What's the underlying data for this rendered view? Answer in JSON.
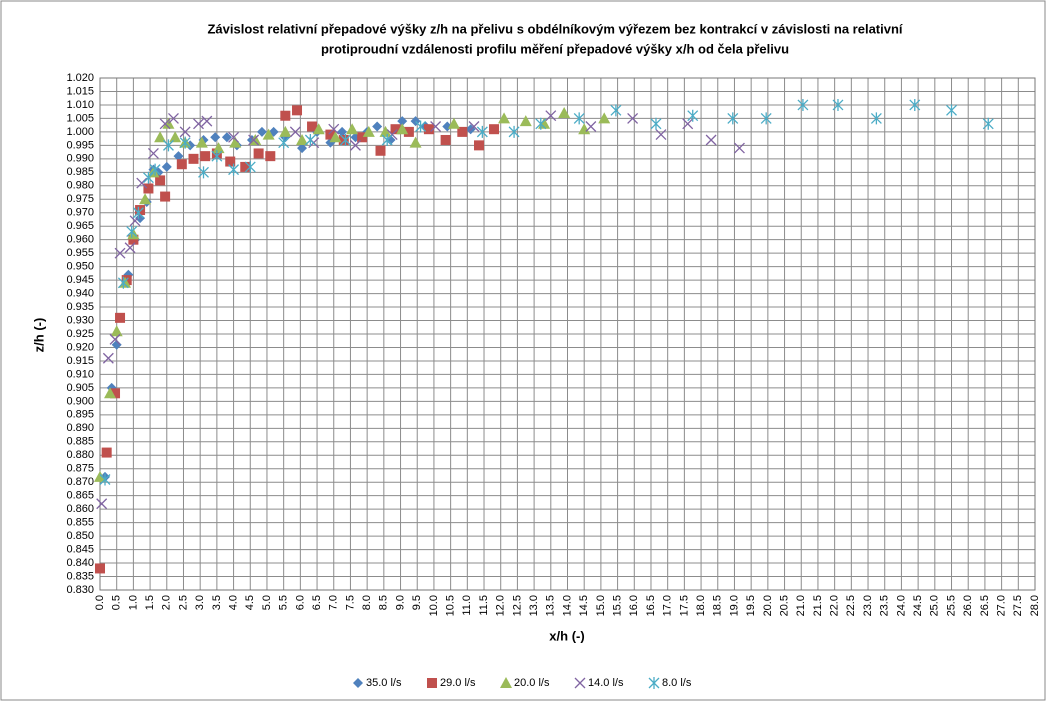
{
  "chart_data": {
    "type": "scatter",
    "title": [
      "Závislost relativní přepadové výšky z/h na přelivu s obdélníkovým výřezem bez kontrakcí v závislosti na relativní",
      "protiproudní vzdálenosti profilu měření přepadové výšky x/h od čela přelivu"
    ],
    "x_label": "x/h (-)",
    "y_label": "z/h (-)",
    "grid": true,
    "legend": "bottom",
    "xlim": [
      0,
      28
    ],
    "ylim": [
      0.83,
      1.02
    ],
    "xticks": [
      {
        "value": 0,
        "label": "0.0"
      },
      {
        "value": 0.5,
        "label": "0.5"
      },
      {
        "value": 1,
        "label": "1.0"
      },
      {
        "value": 1.5,
        "label": "1.5"
      },
      {
        "value": 2,
        "label": "2.0"
      },
      {
        "value": 2.5,
        "label": "2.5"
      },
      {
        "value": 3,
        "label": "3.0"
      },
      {
        "value": 3.5,
        "label": "3.5"
      },
      {
        "value": 4,
        "label": "4.0"
      },
      {
        "value": 4.5,
        "label": "4.5"
      },
      {
        "value": 5,
        "label": "5.0"
      },
      {
        "value": 5.5,
        "label": "5.5"
      },
      {
        "value": 6,
        "label": "6.0"
      },
      {
        "value": 6.5,
        "label": "6.5"
      },
      {
        "value": 7,
        "label": "7.0"
      },
      {
        "value": 7.5,
        "label": "7.5"
      },
      {
        "value": 8,
        "label": "8.0"
      },
      {
        "value": 8.5,
        "label": "8.5"
      },
      {
        "value": 9,
        "label": "9.0"
      },
      {
        "value": 9.5,
        "label": "9.5"
      },
      {
        "value": 10,
        "label": "10.0"
      },
      {
        "value": 10.5,
        "label": "10.5"
      },
      {
        "value": 11,
        "label": "11.0"
      },
      {
        "value": 11.5,
        "label": "11.5"
      },
      {
        "value": 12,
        "label": "12.0"
      },
      {
        "value": 12.5,
        "label": "12.5"
      },
      {
        "value": 13,
        "label": "13.0"
      },
      {
        "value": 13.5,
        "label": "13.5"
      },
      {
        "value": 14,
        "label": "14.0"
      },
      {
        "value": 14.5,
        "label": "14.5"
      },
      {
        "value": 15,
        "label": "15.0"
      },
      {
        "value": 15.5,
        "label": "15.5"
      },
      {
        "value": 16,
        "label": "16.0"
      },
      {
        "value": 16.5,
        "label": "16.5"
      },
      {
        "value": 17,
        "label": "17.0"
      },
      {
        "value": 17.5,
        "label": "17.5"
      },
      {
        "value": 18,
        "label": "18.0"
      },
      {
        "value": 18.5,
        "label": "18.5"
      },
      {
        "value": 19,
        "label": "19.0"
      },
      {
        "value": 19.5,
        "label": "19.5"
      },
      {
        "value": 20,
        "label": "20.0"
      },
      {
        "value": 20.5,
        "label": "20.5"
      },
      {
        "value": 21,
        "label": "21.0"
      },
      {
        "value": 21.5,
        "label": "21.5"
      },
      {
        "value": 22,
        "label": "22.0"
      },
      {
        "value": 22.5,
        "label": "22.5"
      },
      {
        "value": 23,
        "label": "23.0"
      },
      {
        "value": 23.5,
        "label": "23.5"
      },
      {
        "value": 24,
        "label": "24.0"
      },
      {
        "value": 24.5,
        "label": "24.5"
      },
      {
        "value": 25,
        "label": "25.0"
      },
      {
        "value": 25.5,
        "label": "25.5"
      },
      {
        "value": 26,
        "label": "26.0"
      },
      {
        "value": 26.5,
        "label": "26.5"
      },
      {
        "value": 27,
        "label": "27.0"
      },
      {
        "value": 27.5,
        "label": "27.5"
      },
      {
        "value": 28,
        "label": "28.0"
      }
    ],
    "yticks": [
      {
        "value": 0.83,
        "label": "0.830"
      },
      {
        "value": 0.835,
        "label": "0.835"
      },
      {
        "value": 0.84,
        "label": "0.840"
      },
      {
        "value": 0.845,
        "label": "0.845"
      },
      {
        "value": 0.85,
        "label": "0.850"
      },
      {
        "value": 0.855,
        "label": "0.855"
      },
      {
        "value": 0.86,
        "label": "0.860"
      },
      {
        "value": 0.865,
        "label": "0.865"
      },
      {
        "value": 0.87,
        "label": "0.870"
      },
      {
        "value": 0.875,
        "label": "0.875"
      },
      {
        "value": 0.88,
        "label": "0.880"
      },
      {
        "value": 0.885,
        "label": "0.885"
      },
      {
        "value": 0.89,
        "label": "0.890"
      },
      {
        "value": 0.895,
        "label": "0.895"
      },
      {
        "value": 0.9,
        "label": "0.900"
      },
      {
        "value": 0.905,
        "label": "0.905"
      },
      {
        "value": 0.91,
        "label": "0.910"
      },
      {
        "value": 0.915,
        "label": "0.915"
      },
      {
        "value": 0.92,
        "label": "0.920"
      },
      {
        "value": 0.925,
        "label": "0.925"
      },
      {
        "value": 0.93,
        "label": "0.930"
      },
      {
        "value": 0.935,
        "label": "0.935"
      },
      {
        "value": 0.94,
        "label": "0.940"
      },
      {
        "value": 0.945,
        "label": "0.945"
      },
      {
        "value": 0.95,
        "label": "0.950"
      },
      {
        "value": 0.955,
        "label": "0.955"
      },
      {
        "value": 0.96,
        "label": "0.960"
      },
      {
        "value": 0.965,
        "label": "0.965"
      },
      {
        "value": 0.97,
        "label": "0.970"
      },
      {
        "value": 0.975,
        "label": "0.975"
      },
      {
        "value": 0.98,
        "label": "0.980"
      },
      {
        "value": 0.985,
        "label": "0.985"
      },
      {
        "value": 0.99,
        "label": "0.990"
      },
      {
        "value": 0.995,
        "label": "0.995"
      },
      {
        "value": 1,
        "label": "1.000"
      },
      {
        "value": 1.005,
        "label": "1.005"
      },
      {
        "value": 1.01,
        "label": "1.010"
      },
      {
        "value": 1.015,
        "label": "1.015"
      },
      {
        "value": 1.02,
        "label": "1.020"
      }
    ],
    "series": [
      {
        "name": "35.0 l/s",
        "color": "#4f81bd",
        "marker": "diamond",
        "x": [
          0.15,
          0.35,
          0.5,
          0.85,
          1.05,
          1.2,
          1.4,
          1.6,
          1.75,
          2.0,
          2.35,
          2.7,
          3.1,
          3.45,
          3.8,
          4.1,
          4.55,
          4.85,
          5.2,
          5.55,
          6.05,
          6.5,
          6.9,
          7.25,
          7.65,
          8.0,
          8.3,
          8.7,
          9.05,
          9.45,
          9.75,
          10.4,
          11.1
        ],
        "y": [
          0.872,
          0.905,
          0.921,
          0.947,
          0.96,
          0.968,
          0.974,
          0.986,
          0.985,
          0.987,
          0.991,
          0.995,
          0.997,
          0.998,
          0.998,
          0.995,
          0.997,
          1.0,
          1.0,
          0.998,
          0.994,
          1.0,
          0.996,
          1.0,
          0.998,
          1.0,
          1.002,
          0.997,
          1.004,
          1.004,
          1.002,
          1.002,
          1.001
        ]
      },
      {
        "name": "29.0 l/s",
        "color": "#c0504d",
        "marker": "square",
        "x": [
          0.0,
          0.2,
          0.45,
          0.6,
          0.8,
          1.0,
          1.2,
          1.45,
          1.8,
          1.95,
          2.45,
          2.8,
          3.15,
          3.5,
          3.9,
          4.35,
          4.75,
          5.1,
          5.55,
          5.9,
          6.35,
          6.9,
          7.3,
          7.85,
          8.4,
          8.85,
          9.25,
          9.85,
          10.35,
          10.85,
          11.35,
          11.8
        ],
        "y": [
          0.838,
          0.881,
          0.903,
          0.931,
          0.945,
          0.96,
          0.971,
          0.979,
          0.982,
          0.976,
          0.988,
          0.99,
          0.991,
          0.992,
          0.989,
          0.987,
          0.992,
          0.991,
          1.006,
          1.008,
          1.002,
          0.999,
          0.997,
          0.998,
          0.993,
          1.001,
          1.0,
          1.001,
          0.997,
          1.0,
          0.995,
          1.001
        ]
      },
      {
        "name": "20.0 l/s",
        "color": "#9bbb59",
        "marker": "triangle",
        "x": [
          0.0,
          0.3,
          0.5,
          0.75,
          1.0,
          1.35,
          1.6,
          1.8,
          2.05,
          2.25,
          2.55,
          3.05,
          3.55,
          4.05,
          4.65,
          5.05,
          5.55,
          6.05,
          6.55,
          7.05,
          7.55,
          8.05,
          8.55,
          9.05,
          9.45,
          10.6,
          12.1,
          12.75,
          13.3,
          13.9,
          14.5,
          15.1
        ],
        "y": [
          0.872,
          0.903,
          0.926,
          0.944,
          0.962,
          0.975,
          0.985,
          0.998,
          1.003,
          0.998,
          0.996,
          0.996,
          0.994,
          0.996,
          0.997,
          0.999,
          1.0,
          0.997,
          1.001,
          0.998,
          1.001,
          1.0,
          1.0,
          1.001,
          0.996,
          1.003,
          1.005,
          1.004,
          1.003,
          1.007,
          1.001,
          1.005
        ]
      },
      {
        "name": "14.0 l/s",
        "color": "#8064a2",
        "marker": "x",
        "x": [
          0.05,
          0.25,
          0.45,
          0.6,
          0.9,
          1.05,
          1.25,
          1.6,
          1.95,
          2.2,
          2.55,
          2.95,
          3.2,
          4.0,
          4.6,
          5.85,
          6.4,
          7.0,
          7.65,
          8.75,
          10.05,
          11.2,
          13.5,
          14.7,
          15.95,
          16.8,
          17.6,
          18.3,
          19.15
        ],
        "y": [
          0.862,
          0.916,
          0.923,
          0.955,
          0.957,
          0.967,
          0.981,
          0.992,
          1.003,
          1.005,
          1.0,
          1.003,
          1.004,
          0.998,
          0.997,
          1.0,
          0.996,
          1.001,
          0.995,
          0.999,
          1.002,
          1.002,
          1.006,
          1.002,
          1.005,
          0.999,
          1.003,
          0.997,
          0.994
        ]
      },
      {
        "name": "8.0 l/s",
        "color": "#4bacc6",
        "marker": "star",
        "x": [
          0.15,
          0.7,
          0.95,
          1.15,
          1.45,
          1.65,
          2.05,
          2.55,
          3.1,
          3.5,
          4.0,
          4.5,
          5.5,
          6.3,
          7.35,
          8.6,
          9.6,
          11.45,
          12.4,
          13.2,
          14.35,
          15.45,
          16.65,
          17.75,
          18.95,
          19.95,
          21.05,
          22.1,
          23.25,
          24.4,
          25.5,
          26.6
        ],
        "y": [
          0.871,
          0.944,
          0.963,
          0.97,
          0.983,
          0.986,
          0.995,
          0.996,
          0.985,
          0.991,
          0.986,
          0.987,
          0.996,
          0.997,
          0.997,
          0.997,
          1.002,
          1.0,
          1.0,
          1.003,
          1.005,
          1.008,
          1.003,
          1.006,
          1.005,
          1.005,
          1.01,
          1.01,
          1.005,
          1.01,
          1.008,
          1.003
        ]
      }
    ]
  }
}
